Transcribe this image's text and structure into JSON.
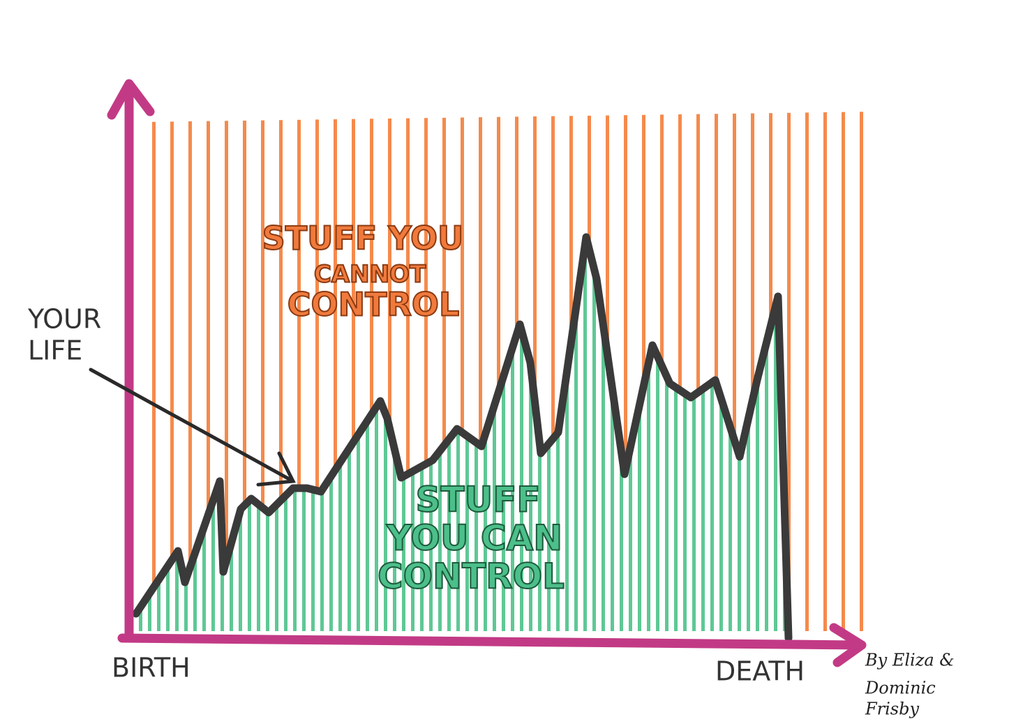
{
  "labels": {
    "cannot_control": [
      "STUFF YOU",
      "CANNOT",
      "CONTROL"
    ],
    "can_control": [
      "STUFF",
      "YOU CAN",
      "CONTROL"
    ],
    "your_life": [
      "YOUR",
      "LIFE"
    ],
    "x_start": "BIRTH",
    "x_end": "DEATH",
    "credit": [
      "By Eliza &",
      "Dominic",
      "Frisby"
    ]
  }
}
